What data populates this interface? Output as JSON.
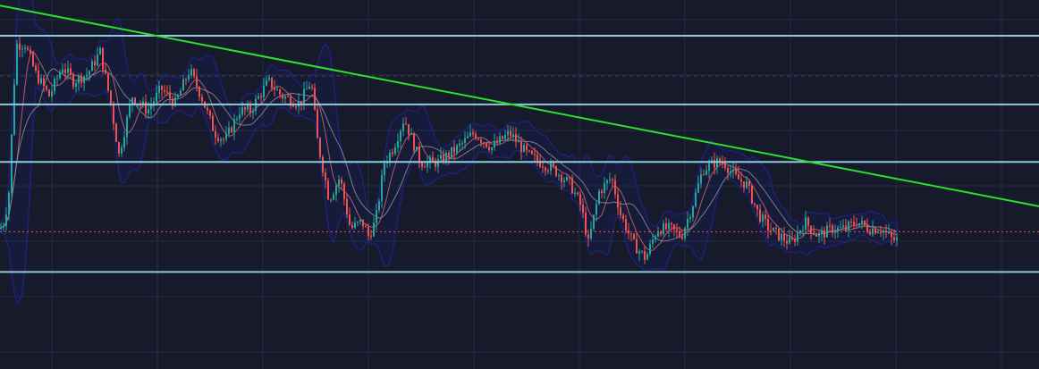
{
  "theme": {
    "background": "#161a2a",
    "grid": "#262b3d",
    "crosshair": "#3a3f52",
    "candle_up": "#26a69a",
    "candle_down": "#ef5350",
    "support_resistance": "#8fc9dc",
    "trendline": "#2ee02e",
    "band": "#1d2485",
    "ma_fast": "#c96a6a",
    "ma_slow": "#8a8f9a",
    "last_price_line": "#ef5350"
  },
  "chart_data": {
    "type": "candlestick",
    "y_range": [
      0,
      100
    ],
    "x_range": [
      0,
      1162
    ],
    "price_segments": [
      [
        0,
        38
      ],
      [
        5,
        40
      ],
      [
        10,
        48
      ],
      [
        18,
        88
      ],
      [
        28,
        88
      ],
      [
        40,
        80
      ],
      [
        55,
        74
      ],
      [
        70,
        82
      ],
      [
        82,
        78
      ],
      [
        98,
        80
      ],
      [
        112,
        86
      ],
      [
        124,
        72
      ],
      [
        133,
        58
      ],
      [
        148,
        74
      ],
      [
        165,
        70
      ],
      [
        180,
        76
      ],
      [
        196,
        72
      ],
      [
        212,
        81
      ],
      [
        225,
        74
      ],
      [
        240,
        64
      ],
      [
        252,
        62
      ],
      [
        268,
        70
      ],
      [
        280,
        70
      ],
      [
        300,
        78
      ],
      [
        315,
        74
      ],
      [
        335,
        72
      ],
      [
        348,
        78
      ],
      [
        355,
        62
      ],
      [
        368,
        46
      ],
      [
        380,
        52
      ],
      [
        392,
        38
      ],
      [
        405,
        40
      ],
      [
        412,
        36
      ],
      [
        420,
        40
      ],
      [
        430,
        56
      ],
      [
        440,
        60
      ],
      [
        452,
        68
      ],
      [
        470,
        56
      ],
      [
        490,
        56
      ],
      [
        512,
        60
      ],
      [
        530,
        64
      ],
      [
        550,
        60
      ],
      [
        570,
        64
      ],
      [
        590,
        58
      ],
      [
        605,
        56
      ],
      [
        620,
        54
      ],
      [
        638,
        50
      ],
      [
        650,
        44
      ],
      [
        658,
        34
      ],
      [
        670,
        48
      ],
      [
        684,
        52
      ],
      [
        694,
        42
      ],
      [
        708,
        34
      ],
      [
        722,
        30
      ],
      [
        735,
        38
      ],
      [
        750,
        38
      ],
      [
        762,
        36
      ],
      [
        774,
        44
      ],
      [
        786,
        54
      ],
      [
        800,
        56
      ],
      [
        810,
        56
      ],
      [
        822,
        52
      ],
      [
        835,
        50
      ],
      [
        848,
        42
      ],
      [
        860,
        38
      ],
      [
        872,
        36
      ],
      [
        885,
        34
      ],
      [
        900,
        40
      ],
      [
        915,
        36
      ],
      [
        930,
        38
      ],
      [
        945,
        38
      ],
      [
        958,
        40
      ],
      [
        972,
        38
      ],
      [
        986,
        38
      ],
      [
        998,
        35
      ],
      [
        1003,
        35
      ]
    ],
    "support_resistance_levels": [
      90.3,
      71.7,
      56.1,
      26.3
    ],
    "trendline": {
      "from": [
        0,
        98.5
      ],
      "to": [
        1162,
        44.1
      ]
    },
    "last_price": 37.2,
    "crosshair": {
      "x": 176,
      "y": 79.4
    }
  }
}
